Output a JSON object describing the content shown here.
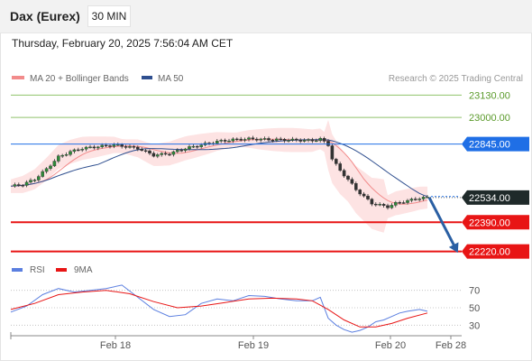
{
  "header": {
    "instrument": "Dax (Eurex)",
    "interval": "30 MIN",
    "timestamp": "Thursday, February 20, 2025 7:56:04 AM CET"
  },
  "credit": "Research © 2025 Trading Central",
  "colors": {
    "bollinger": "#f28b8b",
    "ma50": "#2f4f8f",
    "support": "#e81515",
    "pivot": "#1f6fe6",
    "resistance": "#8fc26a",
    "last_price": "#1f2a2a",
    "forecast_arrow": "#2a5fa3",
    "rsi": "#5b7fe0",
    "rsi_ma": "#e81515"
  },
  "chart_data": [
    {
      "type": "candlestick",
      "legend": {
        "bollinger": "MA 20 + Bollinger Bands",
        "ma50": "MA 50"
      },
      "ylim": [
        22150,
        23200
      ],
      "levels": [
        {
          "key": "r2",
          "value": 23130,
          "label": "23130.00",
          "kind": "resistance"
        },
        {
          "key": "r1",
          "value": 23000,
          "label": "23000.00",
          "kind": "resistance"
        },
        {
          "key": "pivot",
          "value": 22845,
          "label": "22845.00",
          "kind": "pivot"
        },
        {
          "key": "last",
          "value": 22534,
          "label": "22534.00",
          "kind": "last"
        },
        {
          "key": "s1",
          "value": 22390,
          "label": "22390.00",
          "kind": "support"
        },
        {
          "key": "s2",
          "value": 22220,
          "label": "22220.00",
          "kind": "support"
        }
      ],
      "x_ticks": [
        "Feb 18",
        "Feb 19",
        "Feb 20",
        "Feb 28"
      ],
      "forecast": {
        "from": 22534,
        "to": 22220
      },
      "price_path": [
        [
          0,
          22600
        ],
        [
          3,
          22610
        ],
        [
          6,
          22640
        ],
        [
          9,
          22700
        ],
        [
          12,
          22770
        ],
        [
          15,
          22800
        ],
        [
          18,
          22820
        ],
        [
          22,
          22830
        ],
        [
          26,
          22840
        ],
        [
          29,
          22830
        ],
        [
          32,
          22820
        ],
        [
          36,
          22780
        ],
        [
          40,
          22790
        ],
        [
          44,
          22820
        ],
        [
          48,
          22840
        ],
        [
          52,
          22860
        ],
        [
          56,
          22870
        ],
        [
          60,
          22875
        ],
        [
          64,
          22872
        ],
        [
          68,
          22870
        ],
        [
          72,
          22868
        ],
        [
          76,
          22865
        ],
        [
          78,
          22875
        ],
        [
          80,
          22840
        ],
        [
          81,
          22760
        ],
        [
          83,
          22690
        ],
        [
          85,
          22640
        ],
        [
          87,
          22580
        ],
        [
          89,
          22540
        ],
        [
          91,
          22500
        ],
        [
          93,
          22490
        ],
        [
          95,
          22480
        ],
        [
          97,
          22500
        ],
        [
          99,
          22510
        ],
        [
          101,
          22520
        ],
        [
          103,
          22530
        ],
        [
          105,
          22534
        ]
      ]
    },
    {
      "type": "line",
      "legend": {
        "rsi": "RSI",
        "rsi_ma": "9MA"
      },
      "ylim": [
        20,
        80
      ],
      "y_ticks": [
        70,
        50,
        30
      ],
      "rsi": [
        [
          0,
          45
        ],
        [
          4,
          52
        ],
        [
          8,
          65
        ],
        [
          12,
          72
        ],
        [
          16,
          68
        ],
        [
          20,
          70
        ],
        [
          24,
          72
        ],
        [
          28,
          76
        ],
        [
          32,
          62
        ],
        [
          36,
          48
        ],
        [
          40,
          40
        ],
        [
          44,
          42
        ],
        [
          48,
          55
        ],
        [
          52,
          60
        ],
        [
          56,
          58
        ],
        [
          60,
          64
        ],
        [
          64,
          63
        ],
        [
          68,
          60
        ],
        [
          72,
          58
        ],
        [
          76,
          58
        ],
        [
          78,
          62
        ],
        [
          80,
          38
        ],
        [
          82,
          30
        ],
        [
          84,
          25
        ],
        [
          86,
          22
        ],
        [
          88,
          24
        ],
        [
          90,
          28
        ],
        [
          92,
          34
        ],
        [
          94,
          36
        ],
        [
          96,
          40
        ],
        [
          98,
          44
        ],
        [
          100,
          46
        ],
        [
          103,
          48
        ],
        [
          105,
          46
        ]
      ],
      "rsi_ma": [
        [
          0,
          48
        ],
        [
          6,
          55
        ],
        [
          12,
          65
        ],
        [
          18,
          68
        ],
        [
          24,
          70
        ],
        [
          30,
          66
        ],
        [
          36,
          57
        ],
        [
          42,
          50
        ],
        [
          48,
          52
        ],
        [
          54,
          56
        ],
        [
          60,
          60
        ],
        [
          66,
          61
        ],
        [
          72,
          60
        ],
        [
          76,
          58
        ],
        [
          80,
          48
        ],
        [
          84,
          36
        ],
        [
          88,
          28
        ],
        [
          92,
          28
        ],
        [
          96,
          32
        ],
        [
          100,
          38
        ],
        [
          105,
          44
        ]
      ]
    }
  ]
}
